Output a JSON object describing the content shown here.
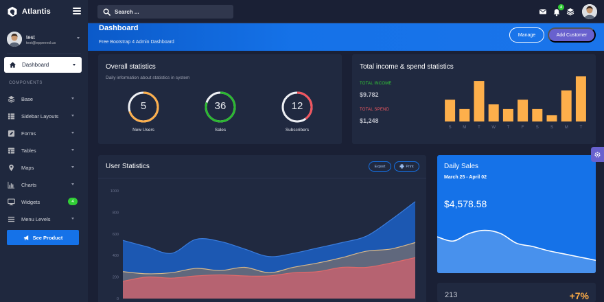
{
  "brand": {
    "name": "Atlantis"
  },
  "search": {
    "placeholder": "Search ..."
  },
  "notifications": {
    "count": "4"
  },
  "user": {
    "name": "test",
    "email": "test@eppeeed.us"
  },
  "sidebar": {
    "active": {
      "label": "Dashboard",
      "icon": "home-icon"
    },
    "section_label": "COMPONENTS",
    "items": [
      {
        "label": "Base",
        "icon": "layers-icon"
      },
      {
        "label": "Sidebar Layouts",
        "icon": "th-list-icon"
      },
      {
        "label": "Forms",
        "icon": "pen-square-icon"
      },
      {
        "label": "Tables",
        "icon": "table-icon"
      },
      {
        "label": "Maps",
        "icon": "map-marker-icon"
      },
      {
        "label": "Charts",
        "icon": "chart-bar-icon"
      },
      {
        "label": "Widgets",
        "icon": "desktop-icon",
        "badge": "4"
      },
      {
        "label": "Menu Levels",
        "icon": "bars-icon"
      }
    ],
    "cta": "See Product"
  },
  "header": {
    "title": "Dashboard",
    "subtitle": "Free Bootstrap 4 Admin Dashboard",
    "manage_label": "Manage",
    "add_customer_label": "Add Customer"
  },
  "overall": {
    "title": "Overall statistics",
    "subtitle": "Daily information about statistics in system",
    "stats": [
      {
        "value": "5",
        "label": "New Users",
        "fraction": 0.7,
        "color": "#fdaf4b"
      },
      {
        "value": "36",
        "label": "Sales",
        "fraction": 0.8,
        "color": "#2bb930"
      },
      {
        "value": "12",
        "label": "Subscribers",
        "fraction": 0.4,
        "color": "#f3545d"
      }
    ]
  },
  "income": {
    "title": "Total income & spend statistics",
    "income_label": "TOTAL INCOME",
    "income_value": "$9.782",
    "spend_label": "TOTAL SPEND",
    "spend_value": "$1,248",
    "income_color": "#31ce36",
    "spend_color": "#f25961"
  },
  "user_stats": {
    "title": "User Statistics",
    "export_label": "Export",
    "print_label": "Print"
  },
  "daily_sales": {
    "title": "Daily Sales",
    "range": "March 25 - April 02",
    "amount": "$4,578.58"
  },
  "bottom_stat": {
    "value": "213",
    "change": "+7%"
  },
  "chart_data": [
    {
      "type": "bar",
      "categories": [
        "S",
        "M",
        "T",
        "W",
        "T",
        "F",
        "S",
        "S",
        "M",
        "T"
      ],
      "values": [
        7,
        4,
        13,
        5.5,
        4,
        7,
        4,
        2,
        10,
        14.5
      ],
      "ylim": [
        0,
        15
      ],
      "color": "#fdaf4b",
      "grid": false,
      "legend": "none"
    },
    {
      "type": "area",
      "title": "User Statistics",
      "yticks": [
        0,
        200,
        400,
        600,
        800,
        1000
      ],
      "ylim": [
        0,
        1000
      ],
      "x": [
        0,
        1,
        2,
        3,
        4,
        5,
        6,
        7,
        8,
        9,
        10,
        11,
        12
      ],
      "series": [
        {
          "values": [
            540,
            480,
            420,
            550,
            530,
            460,
            390,
            420,
            470,
            520,
            580,
            730,
            900
          ],
          "color": "#1c5bb8"
        },
        {
          "values": [
            250,
            230,
            240,
            280,
            260,
            290,
            240,
            290,
            330,
            380,
            440,
            460,
            520
          ],
          "color": "#6c6b73"
        },
        {
          "values": [
            160,
            200,
            190,
            210,
            220,
            210,
            210,
            240,
            250,
            290,
            290,
            330,
            380
          ],
          "color": "#c6636e"
        }
      ],
      "grid": false,
      "legend": "none"
    },
    {
      "type": "area",
      "title": "Daily Sales",
      "x": [
        0,
        1,
        2,
        3,
        4,
        5,
        6,
        7,
        8,
        9,
        10
      ],
      "values": [
        68,
        60,
        74,
        80,
        74,
        56,
        50,
        42,
        36,
        30,
        24
      ],
      "ylim": [
        0,
        100
      ],
      "color": "#ffffff",
      "grid": false,
      "legend": "none"
    }
  ]
}
